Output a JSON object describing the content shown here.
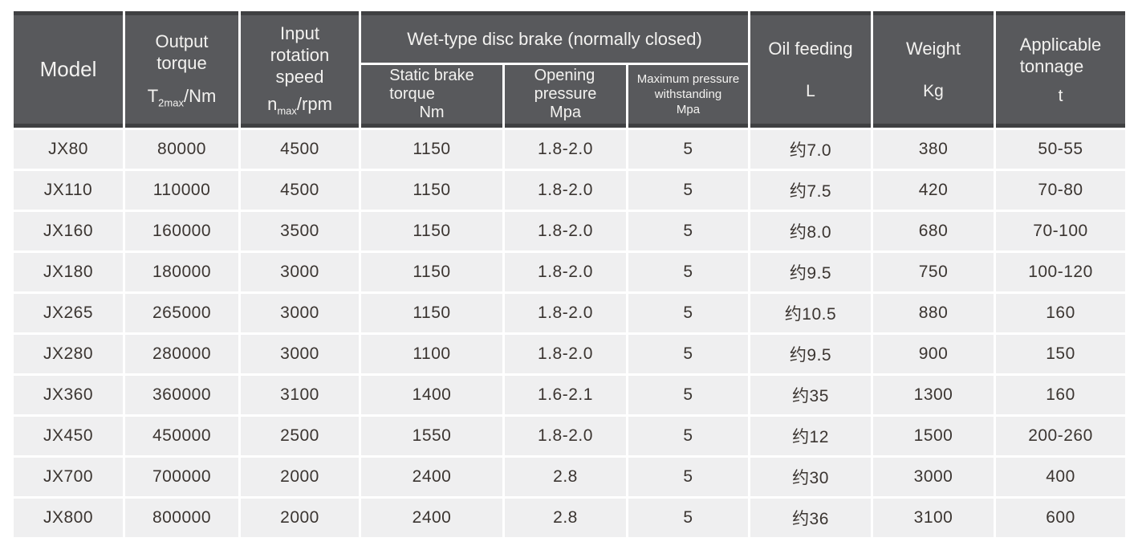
{
  "table": {
    "header": {
      "model": "Model",
      "output_torque": {
        "line1": "Output",
        "line2": "torque",
        "sym_base": "T",
        "sym_sub": "2max",
        "sym_rest": "/Nm"
      },
      "input_speed": {
        "line1": "Input",
        "line2": "rotation",
        "line3": "speed",
        "sym_base": "n",
        "sym_sub": "max",
        "sym_rest": "/rpm"
      },
      "brake_group": "Wet-type disc brake (normally closed)",
      "static_brake": {
        "line1": "Static brake",
        "line2": "torque",
        "unit": "Nm"
      },
      "opening_pressure": {
        "line1": "Opening",
        "line2": "pressure",
        "unit": "Mpa"
      },
      "max_pressure": {
        "line1": "Maximum pressure",
        "line2": "withstanding",
        "unit": "Mpa"
      },
      "oil_feeding": {
        "label": "Oil feeding",
        "unit": "L"
      },
      "weight": {
        "label": "Weight",
        "unit": "Kg"
      },
      "tonnage": {
        "line1": "Applicable",
        "line2": "tonnage",
        "unit": "t"
      }
    },
    "column_keys": [
      "model",
      "output_torque",
      "input_speed",
      "static_brake_torque",
      "opening_pressure",
      "max_pressure",
      "oil_feeding",
      "weight",
      "tonnage"
    ],
    "rows": [
      {
        "model": "JX80",
        "output_torque": "80000",
        "input_speed": "4500",
        "static_brake_torque": "1150",
        "opening_pressure": "1.8-2.0",
        "max_pressure": "5",
        "oil_feeding": "约7.0",
        "weight": "380",
        "tonnage": "50-55"
      },
      {
        "model": "JX110",
        "output_torque": "110000",
        "input_speed": "4500",
        "static_brake_torque": "1150",
        "opening_pressure": "1.8-2.0",
        "max_pressure": "5",
        "oil_feeding": "约7.5",
        "weight": "420",
        "tonnage": "70-80"
      },
      {
        "model": "JX160",
        "output_torque": "160000",
        "input_speed": "3500",
        "static_brake_torque": "1150",
        "opening_pressure": "1.8-2.0",
        "max_pressure": "5",
        "oil_feeding": "约8.0",
        "weight": "680",
        "tonnage": "70-100"
      },
      {
        "model": "JX180",
        "output_torque": "180000",
        "input_speed": "3000",
        "static_brake_torque": "1150",
        "opening_pressure": "1.8-2.0",
        "max_pressure": "5",
        "oil_feeding": "约9.5",
        "weight": "750",
        "tonnage": "100-120"
      },
      {
        "model": "JX265",
        "output_torque": "265000",
        "input_speed": "3000",
        "static_brake_torque": "1150",
        "opening_pressure": "1.8-2.0",
        "max_pressure": "5",
        "oil_feeding": "约10.5",
        "weight": "880",
        "tonnage": "160"
      },
      {
        "model": "JX280",
        "output_torque": "280000",
        "input_speed": "3000",
        "static_brake_torque": "1100",
        "opening_pressure": "1.8-2.0",
        "max_pressure": "5",
        "oil_feeding": "约9.5",
        "weight": "900",
        "tonnage": "150"
      },
      {
        "model": "JX360",
        "output_torque": "360000",
        "input_speed": "3100",
        "static_brake_torque": "1400",
        "opening_pressure": "1.6-2.1",
        "max_pressure": "5",
        "oil_feeding": "约35",
        "weight": "1300",
        "tonnage": "160"
      },
      {
        "model": "JX450",
        "output_torque": "450000",
        "input_speed": "2500",
        "static_brake_torque": "1550",
        "opening_pressure": "1.8-2.0",
        "max_pressure": "5",
        "oil_feeding": "约12",
        "weight": "1500",
        "tonnage": "200-260"
      },
      {
        "model": "JX700",
        "output_torque": "700000",
        "input_speed": "2000",
        "static_brake_torque": "2400",
        "opening_pressure": "2.8",
        "max_pressure": "5",
        "oil_feeding": "约30",
        "weight": "3000",
        "tonnage": "400"
      },
      {
        "model": "JX800",
        "output_torque": "800000",
        "input_speed": "2000",
        "static_brake_torque": "2400",
        "opening_pressure": "2.8",
        "max_pressure": "5",
        "oil_feeding": "约36",
        "weight": "3100",
        "tonnage": "600"
      }
    ],
    "colors": {
      "header_bg": "#58595c",
      "header_strip": "#3f4042",
      "header_text": "#f3f2f0",
      "row_bg": "#efeff0",
      "row_text": "#3b3531",
      "gap": "#ffffff"
    }
  }
}
